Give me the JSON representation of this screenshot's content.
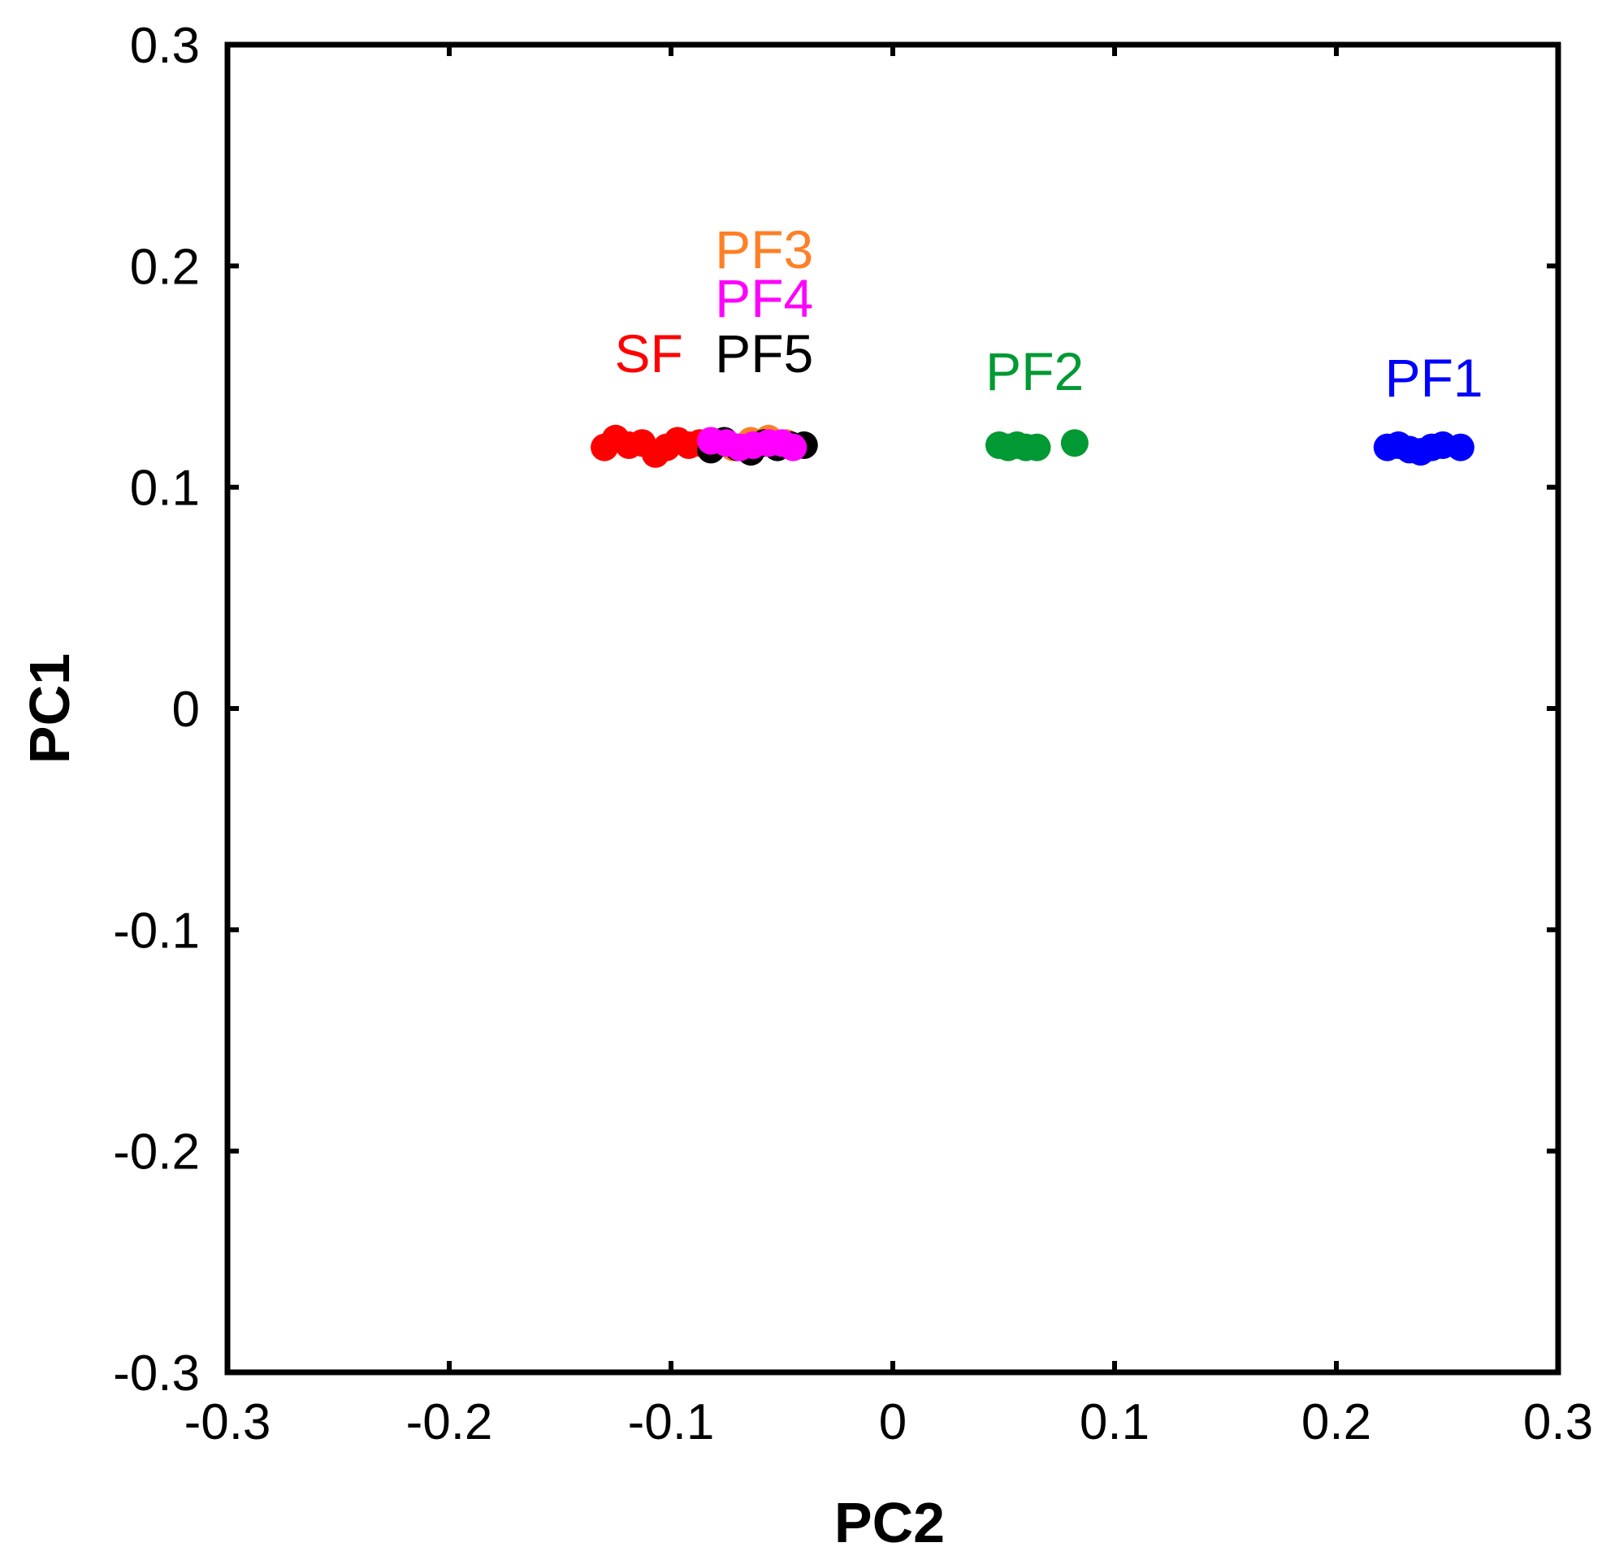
{
  "chart_data": {
    "type": "scatter",
    "title": "",
    "xlabel": "PC2",
    "ylabel": "PC1",
    "xlim": [
      -0.3,
      0.3
    ],
    "ylim": [
      -0.3,
      0.3
    ],
    "xticks": [
      "-0.3",
      "-0.2",
      "-0.1",
      "0",
      "0.1",
      "0.2",
      "0.3"
    ],
    "yticks": [
      "0.3",
      "0.2",
      "0.1",
      "0",
      "-0.1",
      "-0.2",
      "-0.3"
    ],
    "grid": false,
    "series": [
      {
        "name": "SF",
        "color": "#ff0000",
        "points": [
          [
            -0.13,
            0.118
          ],
          [
            -0.125,
            0.122
          ],
          [
            -0.119,
            0.119
          ],
          [
            -0.113,
            0.12
          ],
          [
            -0.107,
            0.115
          ],
          [
            -0.102,
            0.118
          ],
          [
            -0.097,
            0.121
          ],
          [
            -0.092,
            0.119
          ],
          [
            -0.087,
            0.12
          ]
        ]
      },
      {
        "name": "PF3",
        "color": "#ff7f27",
        "points": [
          [
            -0.08,
            0.12
          ],
          [
            -0.072,
            0.118
          ],
          [
            -0.064,
            0.121
          ],
          [
            -0.056,
            0.122
          ],
          [
            -0.048,
            0.12
          ]
        ]
      },
      {
        "name": "PF5",
        "color": "#000000",
        "points": [
          [
            -0.082,
            0.117
          ],
          [
            -0.076,
            0.121
          ],
          [
            -0.07,
            0.118
          ],
          [
            -0.064,
            0.116
          ],
          [
            -0.058,
            0.12
          ],
          [
            -0.052,
            0.118
          ],
          [
            -0.046,
            0.119
          ],
          [
            -0.04,
            0.119
          ]
        ]
      },
      {
        "name": "PF4",
        "color": "#ff00ff",
        "points": [
          [
            -0.082,
            0.121
          ],
          [
            -0.075,
            0.12
          ],
          [
            -0.069,
            0.118
          ],
          [
            -0.063,
            0.119
          ],
          [
            -0.056,
            0.12
          ],
          [
            -0.05,
            0.12
          ],
          [
            -0.045,
            0.118
          ]
        ]
      },
      {
        "name": "PF2",
        "color": "#009933",
        "points": [
          [
            0.048,
            0.119
          ],
          [
            0.052,
            0.118
          ],
          [
            0.056,
            0.119
          ],
          [
            0.06,
            0.118
          ],
          [
            0.065,
            0.118
          ],
          [
            0.082,
            0.12
          ]
        ]
      },
      {
        "name": "PF1",
        "color": "#0000ff",
        "points": [
          [
            0.223,
            0.118
          ],
          [
            0.228,
            0.119
          ],
          [
            0.233,
            0.117
          ],
          [
            0.238,
            0.116
          ],
          [
            0.243,
            0.118
          ],
          [
            0.248,
            0.119
          ],
          [
            0.256,
            0.118
          ]
        ]
      }
    ],
    "annotations": [
      {
        "text": "PF3",
        "color": "#ff7f27",
        "x": -0.058,
        "y": 0.199
      },
      {
        "text": "PF4",
        "color": "#ff00ff",
        "x": -0.058,
        "y": 0.177
      },
      {
        "text": "SF",
        "color": "#ff0000",
        "x": -0.11,
        "y": 0.152
      },
      {
        "text": "PF5",
        "color": "#000000",
        "x": -0.058,
        "y": 0.152
      },
      {
        "text": "PF2",
        "color": "#009933",
        "x": 0.064,
        "y": 0.144
      },
      {
        "text": "PF1",
        "color": "#0000ff",
        "x": 0.244,
        "y": 0.141
      }
    ]
  }
}
